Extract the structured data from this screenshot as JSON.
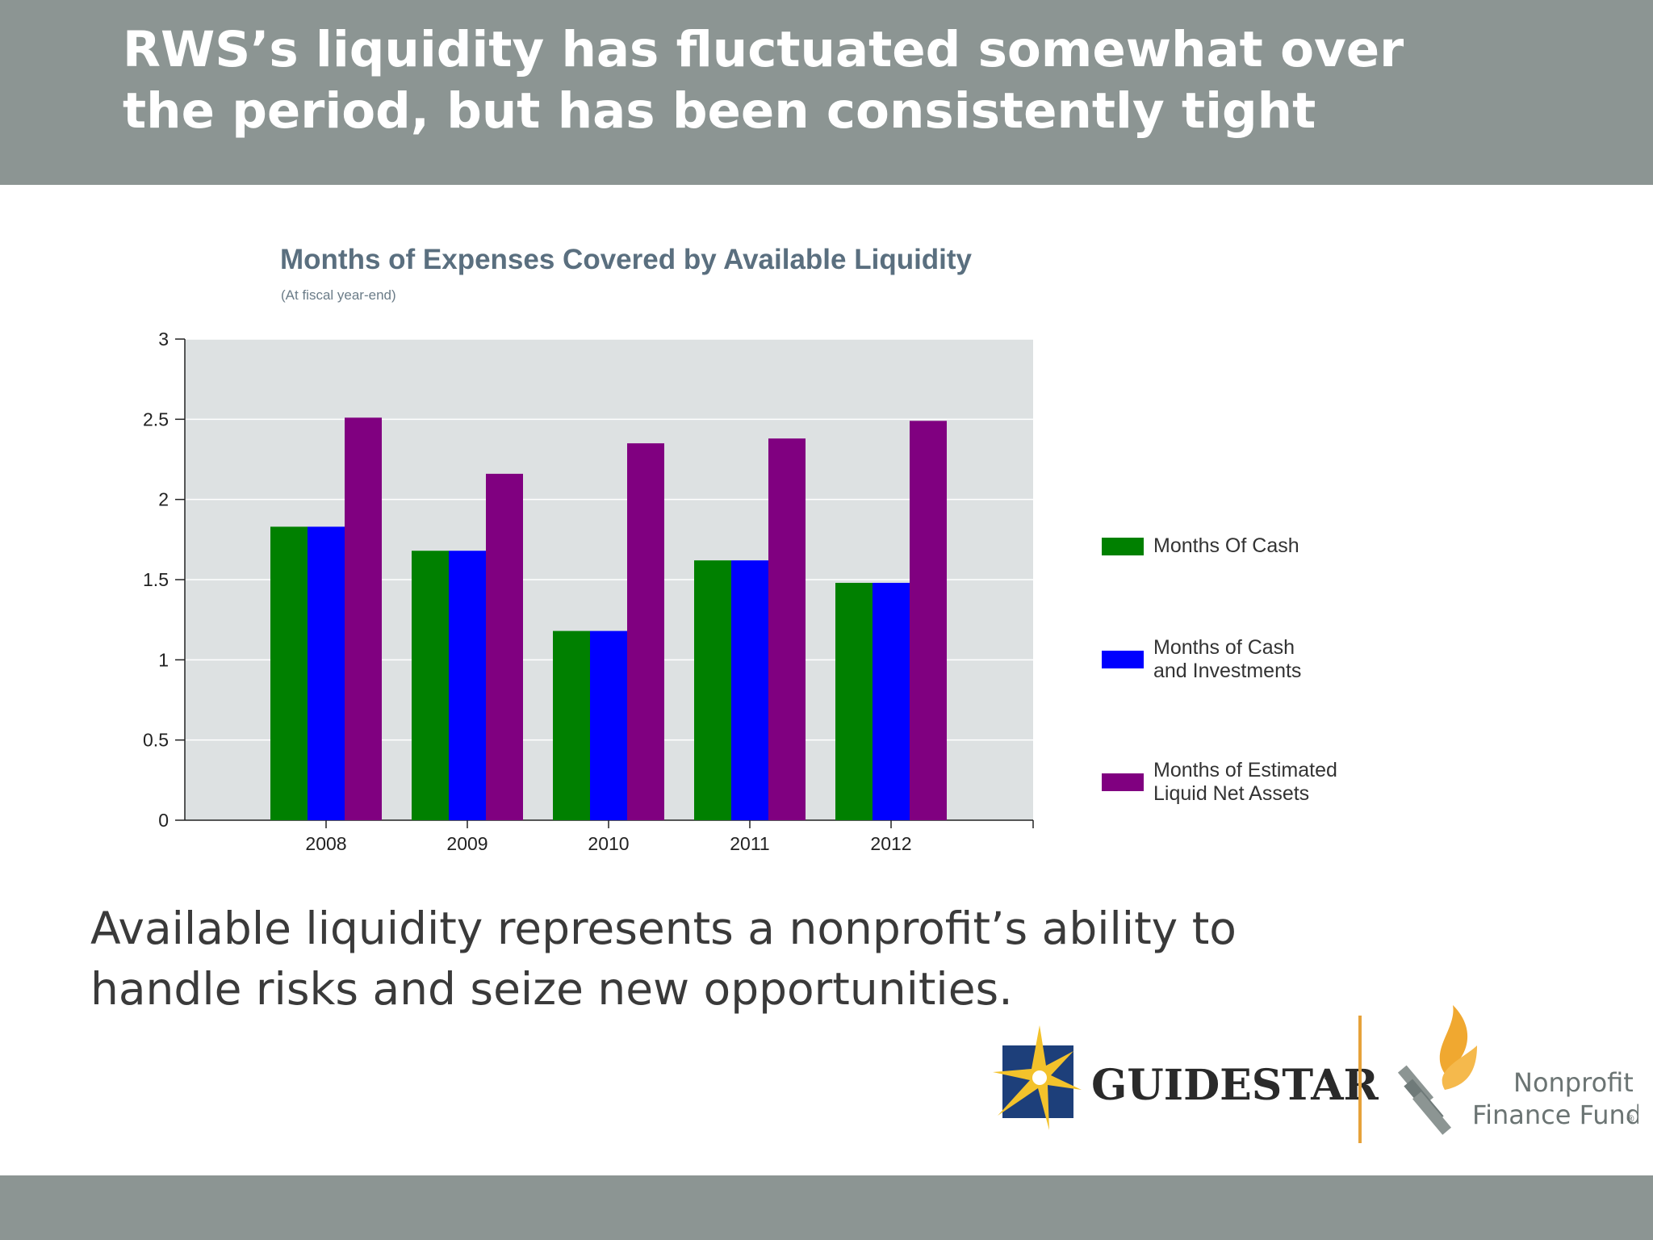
{
  "slide": {
    "title": "RWS’s liquidity has fluctuated somewhat over\nthe period, but has been consistently tight",
    "body_text": "Available liquidity represents a nonprofit’s ability to\nhandle risks and seize new opportunities."
  },
  "chart_data": {
    "type": "bar",
    "title": "Months of Expenses Covered by Available Liquidity",
    "subtitle": "(At fiscal year-end)",
    "xlabel": "",
    "ylabel": "",
    "categories": [
      "2008",
      "2009",
      "2010",
      "2011",
      "2012"
    ],
    "series": [
      {
        "name": "Months Of Cash",
        "color": "#008000",
        "values": [
          1.83,
          1.68,
          1.18,
          1.62,
          1.48
        ]
      },
      {
        "name": "Months of Cash\nand Investments",
        "color": "#0000ff",
        "values": [
          1.83,
          1.68,
          1.18,
          1.62,
          1.48
        ]
      },
      {
        "name": "Months of Estimated\nLiquid Net Assets",
        "color": "#800080",
        "values": [
          2.51,
          2.16,
          2.35,
          2.38,
          2.49
        ]
      }
    ],
    "ylim": [
      0,
      3
    ],
    "yticks": [
      0,
      0.5,
      1,
      1.5,
      2,
      2.5,
      3
    ],
    "ytick_labels": [
      "0",
      "0.5",
      "1",
      "1.5",
      "2",
      "2.5",
      "3"
    ],
    "grid": true,
    "plot_background": "#dde1e2",
    "legend_position": "right"
  },
  "logos": {
    "guidestar": "GUIDESTAR",
    "guidestar_mark": "®",
    "nff_line1": "Nonprofit",
    "nff_line2": "Finance Fund",
    "nff_mark": "®"
  }
}
